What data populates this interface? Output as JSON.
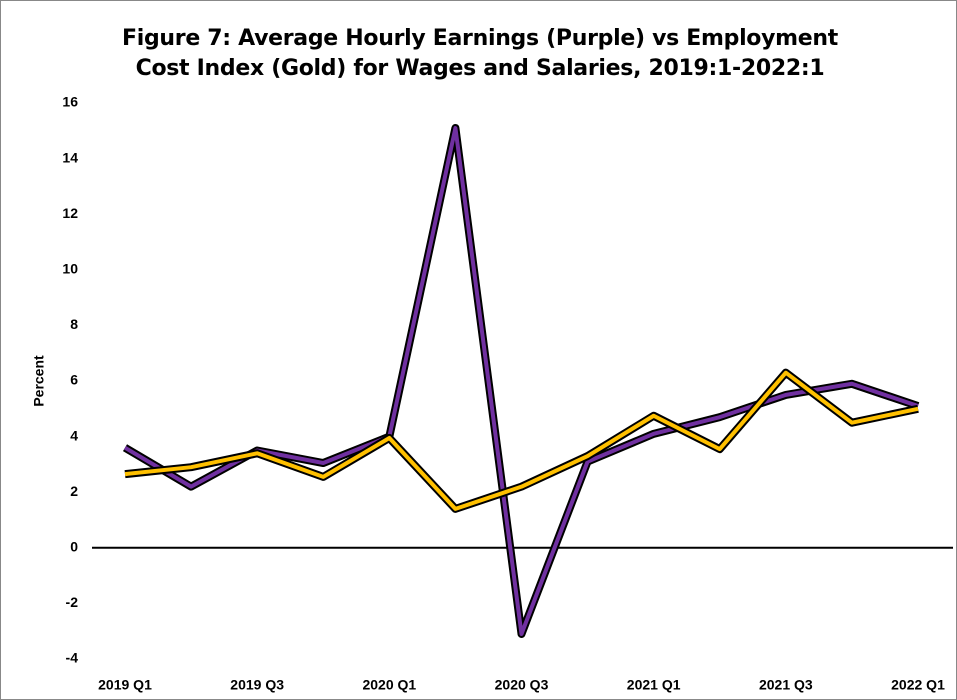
{
  "chart_data": {
    "type": "line",
    "title": "Figure 7: Average Hourly Earnings (Purple) vs Employment Cost Index (Gold) for Wages and Salaries, 2019:1-2022:1",
    "y_label": "Percent",
    "categories": [
      "2019 Q1",
      null,
      "2019 Q3",
      null,
      "2020 Q1",
      null,
      "2020 Q3",
      null,
      "2021 Q1",
      null,
      "2021 Q3",
      null,
      "2022 Q1"
    ],
    "series": [
      {
        "color": "#7030a0",
        "values": [
          3.6,
          2.2,
          3.5,
          3.05,
          4.0,
          15.1,
          -3.1,
          3.1,
          4.1,
          4.7,
          5.5,
          5.9,
          5.1
        ]
      },
      {
        "color": "#ffc000",
        "values": [
          2.65,
          2.9,
          3.4,
          2.55,
          3.95,
          1.4,
          2.2,
          3.3,
          4.75,
          3.55,
          6.3,
          4.5,
          5.0
        ]
      }
    ],
    "ylim": [
      -4,
      16
    ],
    "yticks": [
      -4,
      -2,
      0,
      2,
      4,
      6,
      8,
      10,
      12,
      14,
      16
    ],
    "grid": false
  }
}
